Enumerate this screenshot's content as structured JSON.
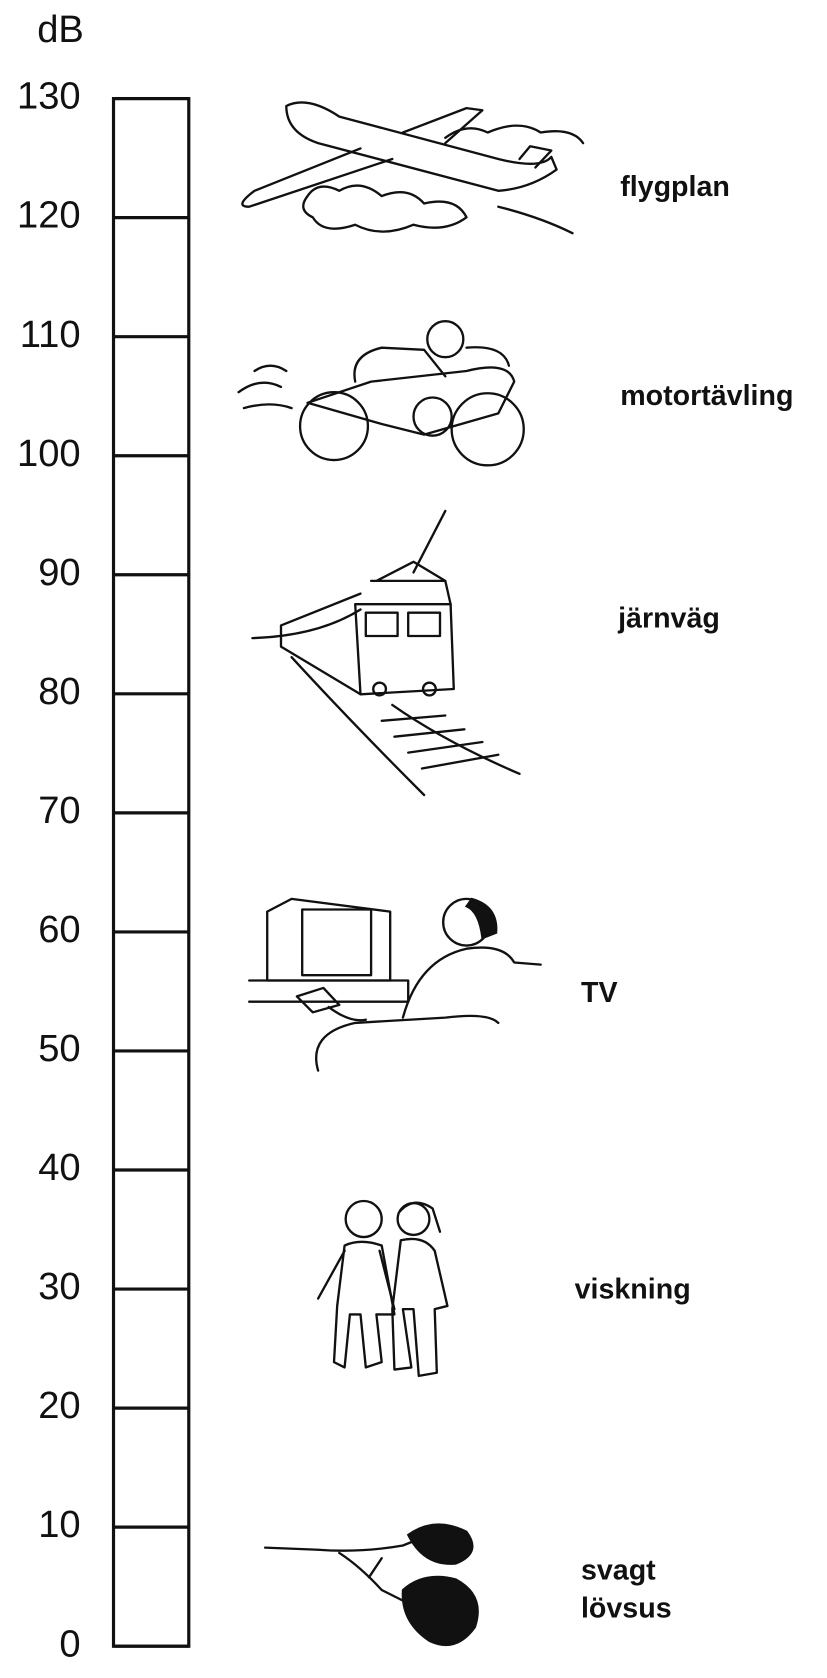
{
  "unit": "dB",
  "scale": {
    "ticks": [
      0,
      10,
      20,
      30,
      40,
      50,
      60,
      70,
      80,
      90,
      100,
      110,
      120,
      130
    ]
  },
  "sources": [
    {
      "lines": [
        "flygplan"
      ]
    },
    {
      "lines": [
        "motortävling"
      ]
    },
    {
      "lines": [
        "järnväg"
      ]
    },
    {
      "lines": [
        "TV"
      ]
    },
    {
      "lines": [
        "viskning"
      ]
    },
    {
      "lines": [
        "svagt",
        "lövsus"
      ]
    }
  ]
}
